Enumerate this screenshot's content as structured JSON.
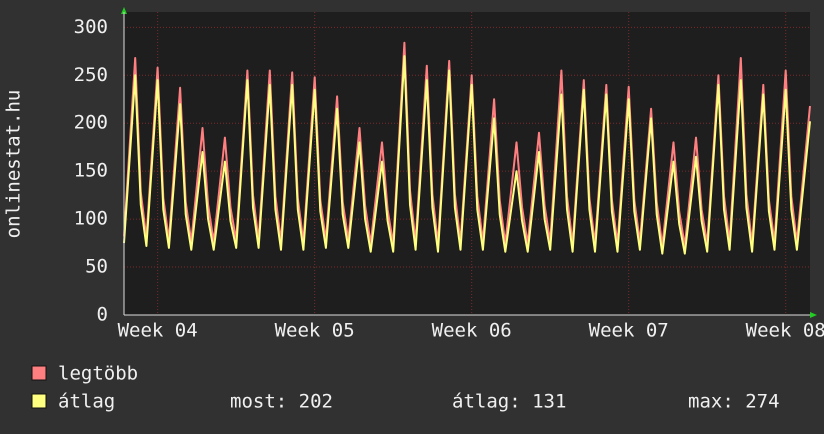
{
  "chart_data": {
    "type": "line",
    "y_label": "onlinestat.hu",
    "x": [
      0,
      12,
      18,
      24,
      36,
      42,
      48,
      60,
      66,
      72,
      84,
      90,
      96,
      108,
      114,
      120,
      132,
      138,
      144,
      156,
      162,
      168,
      180,
      186,
      192,
      204,
      210,
      216,
      228,
      234,
      240,
      252,
      258,
      264,
      276,
      282,
      288,
      300,
      306,
      312,
      324,
      330,
      336,
      348,
      354,
      360,
      372,
      378,
      384,
      396,
      402,
      408,
      420,
      426,
      432,
      444,
      450,
      456,
      468,
      474,
      480,
      492,
      498,
      504,
      516,
      522,
      528,
      540,
      546,
      552,
      564,
      570,
      576,
      588,
      594,
      600,
      612,
      618,
      624,
      636,
      642,
      648,
      660,
      666,
      672,
      684,
      690,
      696,
      708,
      714,
      720,
      734
    ],
    "xlim": [
      0,
      734
    ],
    "xticks": [
      {
        "value": 36,
        "label": "Week 04"
      },
      {
        "value": 204,
        "label": "Week 05"
      },
      {
        "value": 372,
        "label": "Week 06"
      },
      {
        "value": 540,
        "label": "Week 07"
      },
      {
        "value": 708,
        "label": "Week 08"
      }
    ],
    "ylim": [
      0,
      316
    ],
    "yticks": [
      0,
      50,
      100,
      150,
      200,
      250,
      300
    ],
    "grid": true,
    "series": [
      {
        "name": "legtöbb",
        "color": "#ff7f80",
        "values": [
          82,
          268,
          128,
          80,
          258,
          122,
          78,
          237,
          118,
          76,
          195,
          115,
          76,
          185,
          112,
          78,
          255,
          125,
          78,
          255,
          124,
          76,
          253,
          122,
          76,
          248,
          120,
          78,
          228,
          118,
          78,
          195,
          114,
          74,
          180,
          110,
          74,
          284,
          130,
          76,
          260,
          126,
          74,
          265,
          126,
          76,
          250,
          124,
          76,
          225,
          120,
          74,
          180,
          112,
          74,
          190,
          114,
          76,
          255,
          124,
          74,
          245,
          122,
          74,
          240,
          120,
          74,
          238,
          120,
          76,
          215,
          118,
          72,
          180,
          108,
          72,
          185,
          110,
          74,
          250,
          124,
          76,
          268,
          126,
          74,
          240,
          120,
          76,
          255,
          124,
          76,
          218
        ]
      },
      {
        "name": "átlag",
        "color": "#ffff80",
        "values": [
          75,
          250,
          115,
          72,
          245,
          110,
          70,
          220,
          105,
          68,
          170,
          100,
          68,
          160,
          98,
          70,
          245,
          112,
          70,
          240,
          110,
          68,
          240,
          110,
          68,
          235,
          108,
          70,
          215,
          105,
          70,
          180,
          100,
          66,
          160,
          98,
          66,
          270,
          115,
          68,
          245,
          112,
          66,
          255,
          112,
          68,
          240,
          110,
          68,
          205,
          105,
          66,
          150,
          98,
          66,
          170,
          100,
          68,
          230,
          110,
          66,
          235,
          110,
          66,
          230,
          108,
          66,
          225,
          108,
          68,
          205,
          105,
          64,
          160,
          95,
          64,
          165,
          98,
          66,
          240,
          110,
          68,
          245,
          112,
          66,
          230,
          108,
          68,
          235,
          110,
          68,
          202
        ]
      }
    ],
    "stats": [
      "most: 202",
      "átlag: 131",
      "max: 274"
    ]
  }
}
